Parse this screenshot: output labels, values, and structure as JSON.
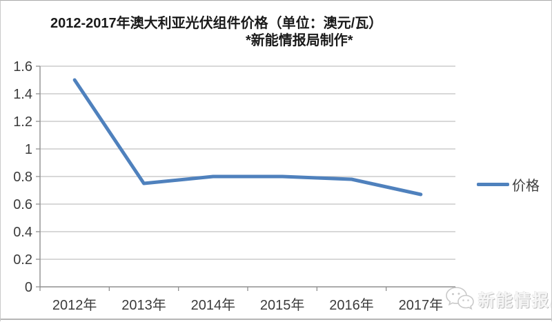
{
  "title": {
    "line1": "2012-2017年澳大利亚光伏组件价格（单位：澳元/瓦）",
    "line2": "*新能情报局制作*"
  },
  "legend": {
    "label": "价格"
  },
  "watermark": {
    "icon": "wechat-icon",
    "text": "新能情报局"
  },
  "colors": {
    "line": "#4F81BD",
    "gridline": "#c1c1c1",
    "axis": "#8f8f8f",
    "tick_label": "#3b3b3b",
    "title_text": "#1a1a1a",
    "watermark_gray": "#c9c9c9"
  },
  "chart_data": {
    "type": "line",
    "categories": [
      "2012年",
      "2013年",
      "2014年",
      "2015年",
      "2016年",
      "2017年"
    ],
    "series": [
      {
        "name": "价格",
        "values": [
          1.5,
          0.75,
          0.8,
          0.8,
          0.78,
          0.67
        ]
      }
    ],
    "title": "2012-2017年澳大利亚光伏组件价格（单位：澳元/瓦） *新能情报局制作*",
    "xlabel": "",
    "ylabel": "",
    "ylim": [
      0,
      1.6
    ],
    "ytick_step": 0.2,
    "ytick_labels": [
      "0",
      "0.2",
      "0.4",
      "0.6",
      "0.8",
      "1",
      "1.2",
      "1.4",
      "1.6"
    ],
    "grid": true,
    "legend_position": "right"
  }
}
